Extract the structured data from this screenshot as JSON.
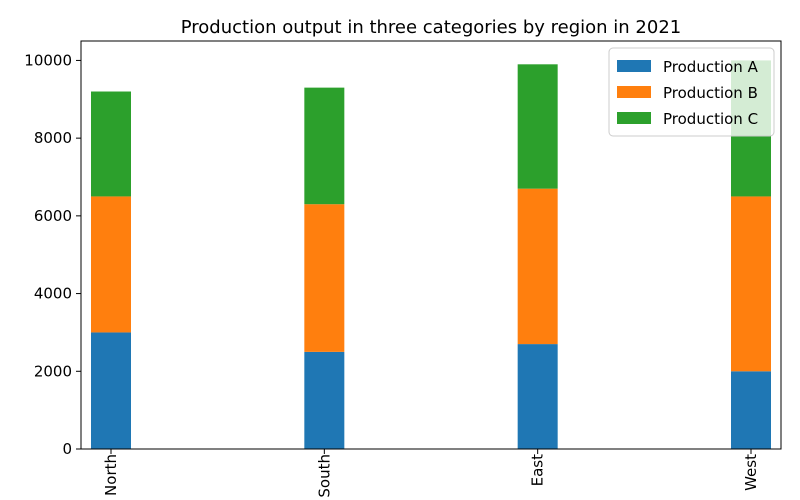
{
  "chart_data": {
    "type": "bar",
    "stacked": true,
    "title": "Production output in three categories by region in 2021",
    "xlabel": "",
    "ylabel": "",
    "categories": [
      "North",
      "South",
      "East",
      "West"
    ],
    "series": [
      {
        "name": "Production A",
        "values": [
          3000,
          2500,
          2700,
          2000
        ],
        "color": "#1f77b4"
      },
      {
        "name": "Production B",
        "values": [
          3500,
          3800,
          4000,
          4500
        ],
        "color": "#ff7f0e"
      },
      {
        "name": "Production C",
        "values": [
          2700,
          3000,
          3200,
          3500
        ],
        "color": "#2ca02c"
      }
    ],
    "ylim": [
      0,
      10500
    ],
    "yticks": [
      0,
      2000,
      4000,
      6000,
      8000,
      10000
    ],
    "grid": false,
    "legend_position": "top-right"
  }
}
